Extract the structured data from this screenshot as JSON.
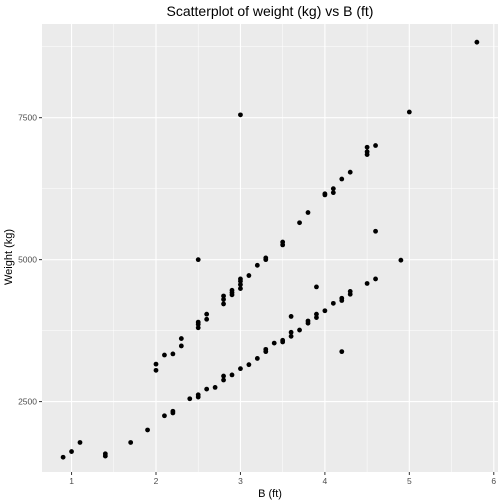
{
  "chart_data": {
    "type": "scatter",
    "title": "Scatterplot of weight (kg) vs B (ft)",
    "xlabel": "B (ft)",
    "ylabel": "Weight (kg)",
    "xlim": [
      0.65,
      6.05
    ],
    "ylim": [
      1260,
      9150
    ],
    "xticks": [
      1,
      2,
      3,
      4,
      5,
      6
    ],
    "yticks": [
      2500,
      5000,
      7500
    ],
    "grid": true,
    "colors": {
      "panel": "#ebebeb",
      "grid": "#ffffff",
      "point": "#000000",
      "tick": "#4d4d4d"
    },
    "points": [
      [
        0.9,
        1520
      ],
      [
        1.0,
        1620
      ],
      [
        1.1,
        1780
      ],
      [
        1.4,
        1540
      ],
      [
        1.4,
        1580
      ],
      [
        1.7,
        1780
      ],
      [
        1.9,
        2000
      ],
      [
        2.1,
        2250
      ],
      [
        2.2,
        2300
      ],
      [
        2.2,
        2330
      ],
      [
        2.4,
        2550
      ],
      [
        2.5,
        2580
      ],
      [
        2.5,
        2620
      ],
      [
        2.6,
        2720
      ],
      [
        2.7,
        2750
      ],
      [
        2.8,
        2880
      ],
      [
        2.8,
        2950
      ],
      [
        2.9,
        2970
      ],
      [
        3.0,
        3080
      ],
      [
        3.1,
        3150
      ],
      [
        3.2,
        3260
      ],
      [
        3.3,
        3380
      ],
      [
        3.3,
        3420
      ],
      [
        3.4,
        3530
      ],
      [
        3.5,
        3550
      ],
      [
        3.5,
        3580
      ],
      [
        3.6,
        3650
      ],
      [
        3.6,
        3720
      ],
      [
        3.7,
        3760
      ],
      [
        3.8,
        3880
      ],
      [
        3.8,
        3920
      ],
      [
        3.9,
        3980
      ],
      [
        3.9,
        4040
      ],
      [
        4.0,
        4100
      ],
      [
        4.1,
        4230
      ],
      [
        4.2,
        4280
      ],
      [
        4.2,
        4320
      ],
      [
        4.3,
        4390
      ],
      [
        4.3,
        4440
      ],
      [
        4.5,
        4580
      ],
      [
        4.6,
        4660
      ],
      [
        4.9,
        4990
      ],
      [
        2.0,
        3050
      ],
      [
        2.0,
        3160
      ],
      [
        2.1,
        3320
      ],
      [
        2.2,
        3340
      ],
      [
        2.3,
        3480
      ],
      [
        2.3,
        3610
      ],
      [
        2.5,
        3800
      ],
      [
        2.5,
        3860
      ],
      [
        2.5,
        3900
      ],
      [
        2.6,
        3950
      ],
      [
        2.6,
        4040
      ],
      [
        2.8,
        4220
      ],
      [
        2.8,
        4300
      ],
      [
        2.8,
        4360
      ],
      [
        2.9,
        4380
      ],
      [
        2.9,
        4420
      ],
      [
        2.9,
        4460
      ],
      [
        3.0,
        4490
      ],
      [
        3.0,
        4560
      ],
      [
        3.0,
        4620
      ],
      [
        3.0,
        4660
      ],
      [
        3.1,
        4720
      ],
      [
        3.2,
        4900
      ],
      [
        3.3,
        5000
      ],
      [
        3.3,
        5030
      ],
      [
        3.5,
        5260
      ],
      [
        3.5,
        5310
      ],
      [
        3.7,
        5650
      ],
      [
        3.8,
        5830
      ],
      [
        4.0,
        6140
      ],
      [
        4.0,
        6160
      ],
      [
        4.1,
        6180
      ],
      [
        4.1,
        6250
      ],
      [
        4.2,
        6420
      ],
      [
        4.3,
        6540
      ],
      [
        4.5,
        6850
      ],
      [
        4.5,
        6900
      ],
      [
        4.5,
        6980
      ],
      [
        4.6,
        7010
      ],
      [
        2.5,
        5000
      ],
      [
        3.0,
        7550
      ],
      [
        3.6,
        4000
      ],
      [
        3.9,
        4520
      ],
      [
        4.2,
        3380
      ],
      [
        4.6,
        5500
      ],
      [
        5.0,
        7600
      ],
      [
        5.8,
        8830
      ]
    ]
  }
}
